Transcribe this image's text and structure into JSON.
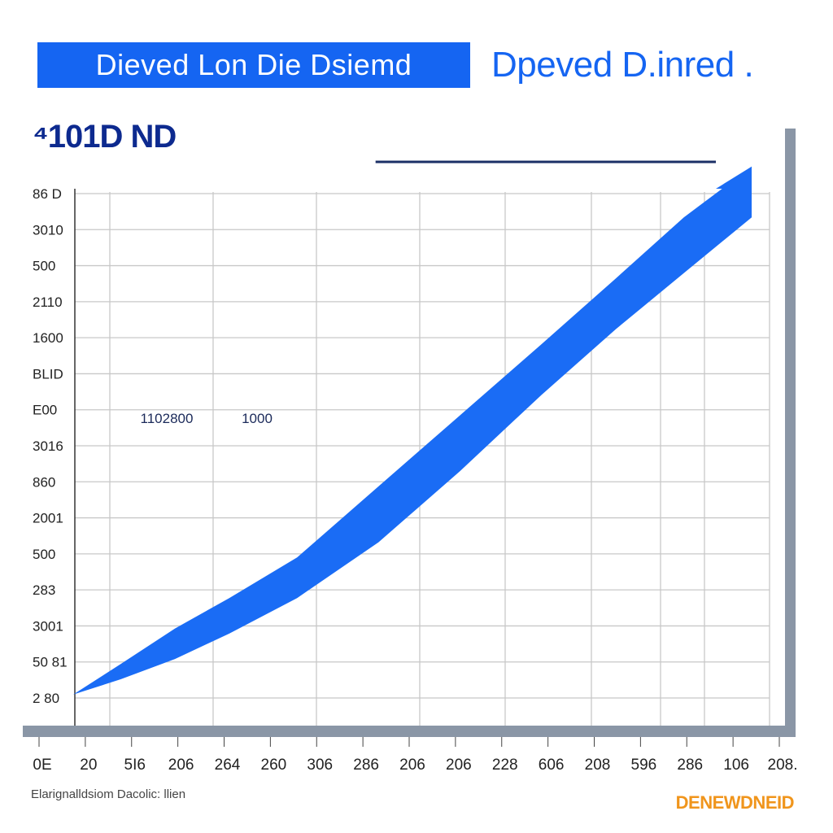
{
  "header": {
    "title": "Dieved  Lon Die Dsiemd",
    "subtitle": "Dpeved D.inred .",
    "metric": "⁴101D ND"
  },
  "footer": {
    "note": "Elarignalldsiom Dacolic: llien",
    "brand": "DENEWDNEID"
  },
  "colors": {
    "accent": "#1565f2",
    "metric": "#0d2a8f",
    "brand": "#f0951c",
    "grid": "#c8c8c8",
    "axis": "#8a96a6",
    "series_fill": "#1a6cf5",
    "target_line": "#1b2f66"
  },
  "chart_data": {
    "type": "area",
    "title": "Dieved  Lon Die Dsiemd",
    "xlabel": "",
    "ylabel": "",
    "y_tick_labels": [
      "86 D",
      "3010",
      "500",
      "2110",
      "1600",
      "BLID",
      "E00",
      "3016",
      "860",
      "2001",
      "500",
      "283",
      "3001",
      "50 81",
      "2 80"
    ],
    "x_tick_labels": [
      "0E",
      "20",
      "5I6",
      "206",
      "264",
      "260",
      "306",
      "286",
      "206",
      "206",
      "228",
      "606",
      "208",
      "596",
      "286",
      "106",
      "208."
    ],
    "annotations": [
      "1102800",
      "1000"
    ],
    "grid": true,
    "series": [
      {
        "x": [
          0,
          0.07,
          0.15,
          0.23,
          0.33,
          0.45,
          0.57,
          0.69,
          0.8,
          0.9,
          1.0
        ],
        "upper": [
          0.01,
          0.07,
          0.14,
          0.2,
          0.28,
          0.42,
          0.56,
          0.7,
          0.83,
          0.95,
          1.05
        ],
        "lower": [
          0.01,
          0.04,
          0.08,
          0.13,
          0.2,
          0.31,
          0.45,
          0.6,
          0.73,
          0.84,
          0.95
        ]
      }
    ],
    "target_line": {
      "from": 0.52,
      "to": 0.99,
      "value": 0.96
    }
  }
}
